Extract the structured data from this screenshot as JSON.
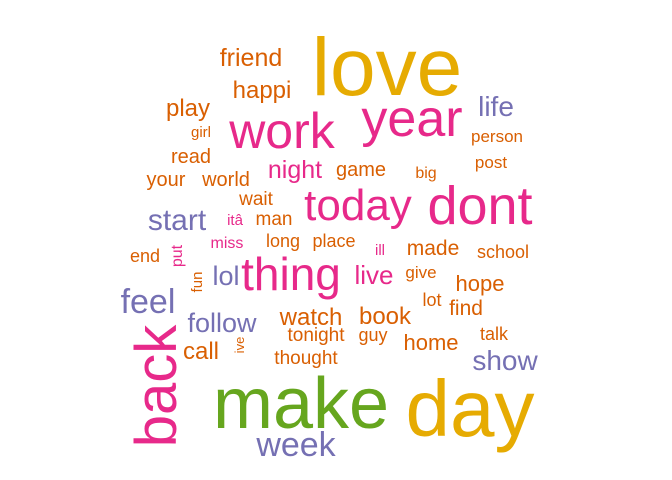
{
  "colors": {
    "orange": "#d95f02",
    "gold": "#e6ab02",
    "magenta": "#e7298a",
    "purple": "#7570b3",
    "green": "#66a61e"
  },
  "words": [
    {
      "text": "love",
      "color": "gold"
    },
    {
      "text": "make",
      "color": "green"
    },
    {
      "text": "day",
      "color": "gold"
    },
    {
      "text": "work",
      "color": "magenta"
    },
    {
      "text": "year",
      "color": "magenta"
    },
    {
      "text": "dont",
      "color": "magenta"
    },
    {
      "text": "back",
      "color": "magenta"
    },
    {
      "text": "thing",
      "color": "magenta"
    },
    {
      "text": "today",
      "color": "magenta"
    },
    {
      "text": "week",
      "color": "purple"
    },
    {
      "text": "feel",
      "color": "purple"
    },
    {
      "text": "start",
      "color": "purple"
    },
    {
      "text": "life",
      "color": "purple"
    },
    {
      "text": "show",
      "color": "purple"
    },
    {
      "text": "follow",
      "color": "purple"
    },
    {
      "text": "lol",
      "color": "purple"
    },
    {
      "text": "live",
      "color": "magenta"
    },
    {
      "text": "night",
      "color": "magenta"
    },
    {
      "text": "friend",
      "color": "orange"
    },
    {
      "text": "happi",
      "color": "orange"
    },
    {
      "text": "play",
      "color": "orange"
    },
    {
      "text": "watch",
      "color": "orange"
    },
    {
      "text": "book",
      "color": "orange"
    },
    {
      "text": "call",
      "color": "orange"
    },
    {
      "text": "hope",
      "color": "orange"
    },
    {
      "text": "home",
      "color": "orange"
    },
    {
      "text": "made",
      "color": "orange"
    },
    {
      "text": "find",
      "color": "orange"
    },
    {
      "text": "game",
      "color": "orange"
    },
    {
      "text": "read",
      "color": "orange"
    },
    {
      "text": "your",
      "color": "orange"
    },
    {
      "text": "world",
      "color": "orange"
    },
    {
      "text": "man",
      "color": "orange"
    },
    {
      "text": "wait",
      "color": "orange"
    },
    {
      "text": "long",
      "color": "orange"
    },
    {
      "text": "place",
      "color": "orange"
    },
    {
      "text": "tonight",
      "color": "orange"
    },
    {
      "text": "guy",
      "color": "orange"
    },
    {
      "text": "thought",
      "color": "orange"
    },
    {
      "text": "lot",
      "color": "orange"
    },
    {
      "text": "talk",
      "color": "orange"
    },
    {
      "text": "school",
      "color": "orange"
    },
    {
      "text": "give",
      "color": "orange"
    },
    {
      "text": "person",
      "color": "orange"
    },
    {
      "text": "post",
      "color": "orange"
    },
    {
      "text": "big",
      "color": "orange"
    },
    {
      "text": "girl",
      "color": "orange"
    },
    {
      "text": "end",
      "color": "orange"
    },
    {
      "text": "miss",
      "color": "magenta"
    },
    {
      "text": "ill",
      "color": "magenta"
    },
    {
      "text": "itâ",
      "color": "magenta"
    },
    {
      "text": "put",
      "color": "magenta"
    },
    {
      "text": "fun",
      "color": "orange"
    },
    {
      "text": "ive",
      "color": "orange"
    }
  ]
}
